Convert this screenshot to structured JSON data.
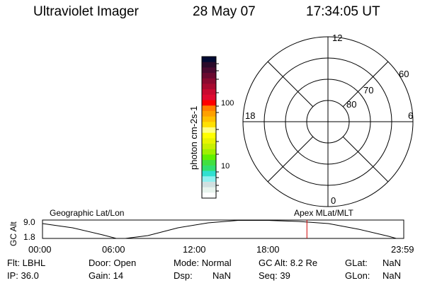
{
  "header": {
    "title": "Ultraviolet Imager",
    "date": "28 May 07",
    "time": "17:34:05 UT"
  },
  "colorbar": {
    "label": "photon cm-2s-1",
    "ticks": [
      "100",
      "10"
    ],
    "colors": [
      "#000a33",
      "#2a0a2a",
      "#4a0a30",
      "#6a0a30",
      "#8a0a30",
      "#a80a30",
      "#c80a30",
      "#e00a30",
      "#ff0000",
      "#ff7f00",
      "#ffa000",
      "#ffc000",
      "#ffe000",
      "#ffff80",
      "#ffff00",
      "#e8f400",
      "#c8f000",
      "#a0f000",
      "#60f000",
      "#40e040",
      "#30e070",
      "#30e0d0",
      "#90f0f0",
      "#d0e0e0",
      "#e8f4ee",
      "#ffffff"
    ]
  },
  "polar": {
    "mlt_labels": [
      "12",
      "18",
      "6",
      "0"
    ],
    "lat_labels": [
      "60",
      "70",
      "80"
    ]
  },
  "timeline": {
    "ylabel": "GC Alt",
    "yticks": [
      "9.0",
      "1.8"
    ],
    "left_title": "Geographic Lat/Lon",
    "right_title": "Apex MLat/MLT",
    "xticks": [
      "00:00",
      "06:00",
      "12:00",
      "18:00",
      "23:59"
    ],
    "current_time_marker": "17:34",
    "marker_color": "#d00000"
  },
  "status": {
    "flt": "Flt: LBHL",
    "ip": "IP: 36.0",
    "door": "Door: Open",
    "gain": "Gain: 14",
    "mode": "Mode: Normal",
    "dsp_label": "Dsp:",
    "dsp_value": "NaN",
    "gc_alt": "GC Alt: 8.2 Re",
    "seq": "Seq: 39",
    "glat_label": "GLat:",
    "glat_value": "NaN",
    "glon_label": "GLon:",
    "glon_value": "NaN"
  }
}
